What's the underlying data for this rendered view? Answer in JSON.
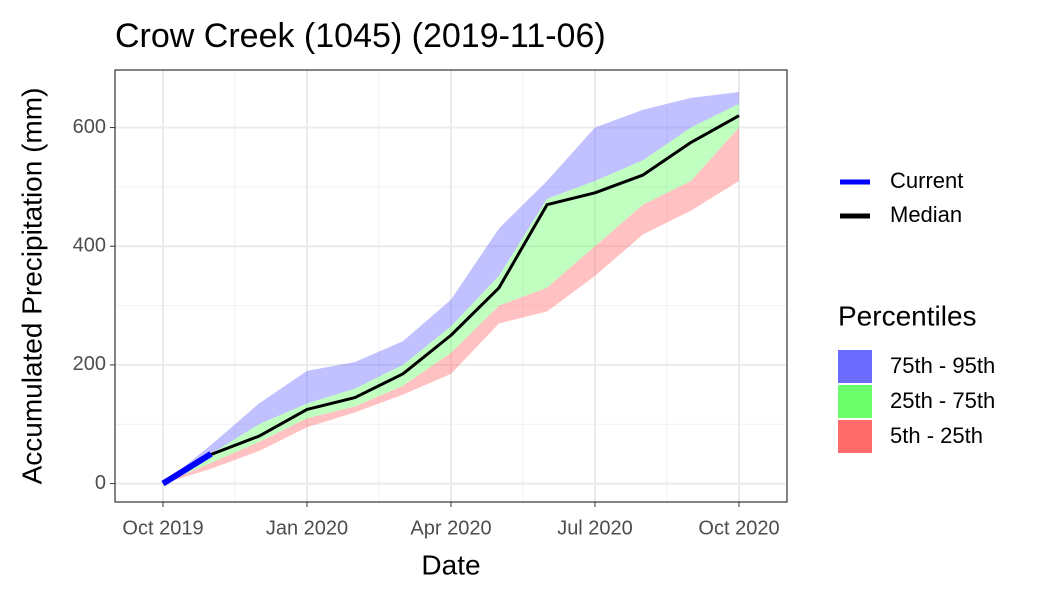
{
  "chart_data": {
    "type": "line",
    "title": "Crow Creek (1045) (2019-11-06)",
    "x_label": "Date",
    "y_label": "Accumulated Precipitation (mm)",
    "x": [
      "2019-10",
      "2019-11",
      "2019-12",
      "2020-01",
      "2020-02",
      "2020-03",
      "2020-04",
      "2020-05",
      "2020-06",
      "2020-07",
      "2020-08",
      "2020-09",
      "2020-10"
    ],
    "xlim": [
      "2019-09",
      "2020-11"
    ],
    "xticks": [
      {
        "value": "2019-10",
        "label": "Oct 2019"
      },
      {
        "value": "2020-01",
        "label": "Jan 2020"
      },
      {
        "value": "2020-04",
        "label": "Apr 2020"
      },
      {
        "value": "2020-07",
        "label": "Jul 2020"
      },
      {
        "value": "2020-10",
        "label": "Oct 2020"
      }
    ],
    "ylim": [
      -31,
      697
    ],
    "yticks": [
      0,
      200,
      400,
      600
    ],
    "grid": true,
    "bands_title": "Percentiles",
    "bands": [
      {
        "name": "75th - 95th",
        "color": "#6b6bff",
        "lower": [
          0,
          50,
          100,
          135,
          160,
          200,
          265,
          350,
          480,
          510,
          545,
          600,
          640
        ],
        "upper": [
          0,
          65,
          135,
          190,
          205,
          240,
          310,
          430,
          510,
          600,
          630,
          650,
          660
        ]
      },
      {
        "name": "25th - 75th",
        "color": "#6bff6b",
        "lower": [
          0,
          35,
          70,
          110,
          130,
          165,
          220,
          300,
          330,
          400,
          470,
          510,
          600
        ],
        "upper": [
          0,
          50,
          100,
          135,
          160,
          200,
          265,
          350,
          480,
          510,
          545,
          600,
          640
        ]
      },
      {
        "name": "5th - 25th",
        "color": "#ff6b6b",
        "lower": [
          0,
          25,
          55,
          95,
          120,
          150,
          185,
          270,
          290,
          350,
          420,
          460,
          510
        ],
        "upper": [
          0,
          35,
          70,
          110,
          130,
          165,
          220,
          300,
          330,
          400,
          470,
          510,
          600
        ]
      }
    ],
    "series": [
      {
        "name": "Current",
        "color": "#0000ff",
        "values": [
          0,
          50,
          null,
          null,
          null,
          null,
          null,
          null,
          null,
          null,
          null,
          null,
          null
        ]
      },
      {
        "name": "Median",
        "color": "#000000",
        "values": [
          0,
          49,
          80,
          125,
          145,
          185,
          250,
          330,
          470,
          490,
          520,
          575,
          620
        ]
      }
    ]
  }
}
